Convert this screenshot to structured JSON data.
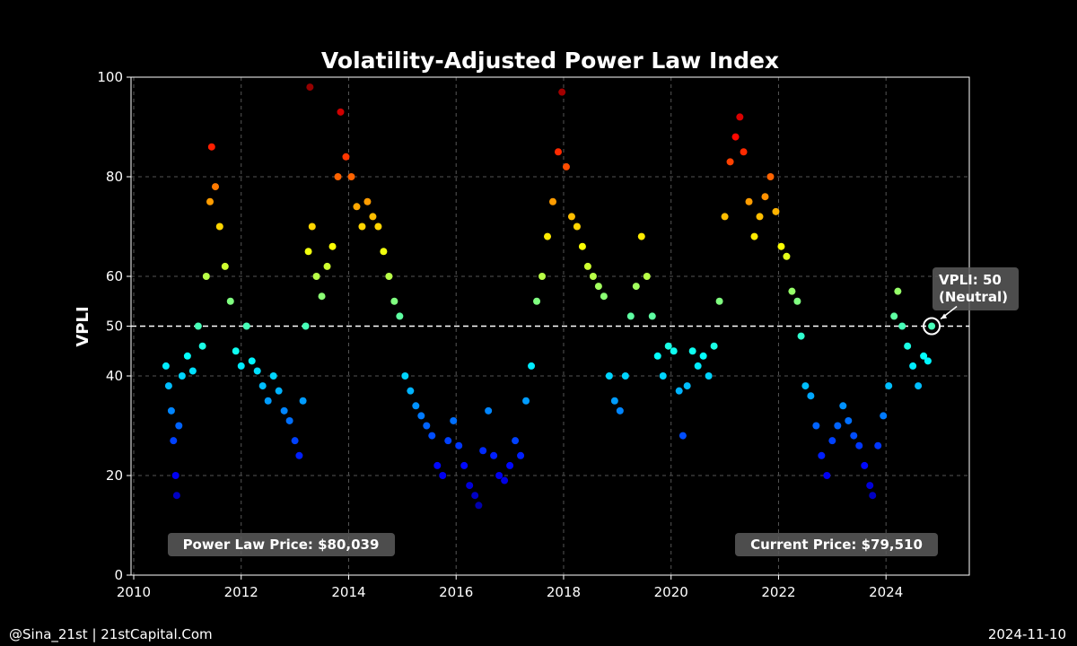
{
  "chart_data": {
    "type": "scatter",
    "title": "Volatility-Adjusted Power Law Index",
    "xlabel": "",
    "ylabel": "VPLI",
    "xlim": [
      2009.95,
      2025.55
    ],
    "ylim": [
      0,
      100
    ],
    "x_ticks": [
      "2010",
      "2012",
      "2014",
      "2016",
      "2018",
      "2020",
      "2022",
      "2024"
    ],
    "y_ticks": [
      "0",
      "20",
      "40",
      "50",
      "60",
      "80",
      "100"
    ],
    "grid": true,
    "reference_line": {
      "y": 50,
      "style": "dashed"
    },
    "colormap": "jet (low = blue, high = red)",
    "series": [
      {
        "points": [
          [
            2010.6,
            42
          ],
          [
            2010.65,
            38
          ],
          [
            2010.7,
            33
          ],
          [
            2010.74,
            27
          ],
          [
            2010.78,
            20
          ],
          [
            2010.8,
            16
          ],
          [
            2010.84,
            30
          ],
          [
            2010.9,
            40
          ],
          [
            2011.0,
            44
          ],
          [
            2011.1,
            41
          ],
          [
            2011.2,
            50
          ],
          [
            2011.28,
            46
          ],
          [
            2011.35,
            60
          ],
          [
            2011.42,
            75
          ],
          [
            2011.45,
            86
          ],
          [
            2011.52,
            78
          ],
          [
            2011.6,
            70
          ],
          [
            2011.7,
            62
          ],
          [
            2011.8,
            55
          ],
          [
            2011.9,
            45
          ],
          [
            2012.0,
            42
          ],
          [
            2012.1,
            50
          ],
          [
            2012.2,
            43
          ],
          [
            2012.3,
            41
          ],
          [
            2012.4,
            38
          ],
          [
            2012.5,
            35
          ],
          [
            2012.6,
            40
          ],
          [
            2012.7,
            37
          ],
          [
            2012.8,
            33
          ],
          [
            2012.9,
            31
          ],
          [
            2013.0,
            27
          ],
          [
            2013.08,
            24
          ],
          [
            2013.15,
            35
          ],
          [
            2013.2,
            50
          ],
          [
            2013.25,
            65
          ],
          [
            2013.28,
            98
          ],
          [
            2013.32,
            70
          ],
          [
            2013.4,
            60
          ],
          [
            2013.5,
            56
          ],
          [
            2013.6,
            62
          ],
          [
            2013.7,
            66
          ],
          [
            2013.8,
            80
          ],
          [
            2013.85,
            93
          ],
          [
            2013.95,
            84
          ],
          [
            2014.05,
            80
          ],
          [
            2014.15,
            74
          ],
          [
            2014.25,
            70
          ],
          [
            2014.35,
            75
          ],
          [
            2014.45,
            72
          ],
          [
            2014.55,
            70
          ],
          [
            2014.65,
            65
          ],
          [
            2014.75,
            60
          ],
          [
            2014.85,
            55
          ],
          [
            2014.95,
            52
          ],
          [
            2015.05,
            40
          ],
          [
            2015.15,
            37
          ],
          [
            2015.25,
            34
          ],
          [
            2015.35,
            32
          ],
          [
            2015.45,
            30
          ],
          [
            2015.55,
            28
          ],
          [
            2015.65,
            22
          ],
          [
            2015.75,
            20
          ],
          [
            2015.85,
            27
          ],
          [
            2015.95,
            31
          ],
          [
            2016.05,
            26
          ],
          [
            2016.15,
            22
          ],
          [
            2016.25,
            18
          ],
          [
            2016.35,
            16
          ],
          [
            2016.42,
            14
          ],
          [
            2016.5,
            25
          ],
          [
            2016.6,
            33
          ],
          [
            2016.7,
            24
          ],
          [
            2016.8,
            20
          ],
          [
            2016.9,
            19
          ],
          [
            2017.0,
            22
          ],
          [
            2017.1,
            27
          ],
          [
            2017.2,
            24
          ],
          [
            2017.3,
            35
          ],
          [
            2017.4,
            42
          ],
          [
            2017.5,
            55
          ],
          [
            2017.6,
            60
          ],
          [
            2017.7,
            68
          ],
          [
            2017.8,
            75
          ],
          [
            2017.9,
            85
          ],
          [
            2017.97,
            97
          ],
          [
            2018.05,
            82
          ],
          [
            2018.15,
            72
          ],
          [
            2018.25,
            70
          ],
          [
            2018.35,
            66
          ],
          [
            2018.45,
            62
          ],
          [
            2018.55,
            60
          ],
          [
            2018.65,
            58
          ],
          [
            2018.75,
            56
          ],
          [
            2018.85,
            40
          ],
          [
            2018.95,
            35
          ],
          [
            2019.05,
            33
          ],
          [
            2019.15,
            40
          ],
          [
            2019.25,
            52
          ],
          [
            2019.35,
            58
          ],
          [
            2019.45,
            68
          ],
          [
            2019.55,
            60
          ],
          [
            2019.65,
            52
          ],
          [
            2019.75,
            44
          ],
          [
            2019.85,
            40
          ],
          [
            2019.95,
            46
          ],
          [
            2020.05,
            45
          ],
          [
            2020.15,
            37
          ],
          [
            2020.22,
            28
          ],
          [
            2020.3,
            38
          ],
          [
            2020.4,
            45
          ],
          [
            2020.5,
            42
          ],
          [
            2020.6,
            44
          ],
          [
            2020.7,
            40
          ],
          [
            2020.8,
            46
          ],
          [
            2020.9,
            55
          ],
          [
            2021.0,
            72
          ],
          [
            2021.1,
            83
          ],
          [
            2021.2,
            88
          ],
          [
            2021.28,
            92
          ],
          [
            2021.35,
            85
          ],
          [
            2021.45,
            75
          ],
          [
            2021.55,
            68
          ],
          [
            2021.65,
            72
          ],
          [
            2021.75,
            76
          ],
          [
            2021.85,
            80
          ],
          [
            2021.95,
            73
          ],
          [
            2022.05,
            66
          ],
          [
            2022.15,
            64
          ],
          [
            2022.25,
            57
          ],
          [
            2022.35,
            55
          ],
          [
            2022.42,
            48
          ],
          [
            2022.5,
            38
          ],
          [
            2022.6,
            36
          ],
          [
            2022.7,
            30
          ],
          [
            2022.8,
            24
          ],
          [
            2022.9,
            20
          ],
          [
            2023.0,
            27
          ],
          [
            2023.1,
            30
          ],
          [
            2023.2,
            34
          ],
          [
            2023.3,
            31
          ],
          [
            2023.4,
            28
          ],
          [
            2023.5,
            26
          ],
          [
            2023.6,
            22
          ],
          [
            2023.7,
            18
          ],
          [
            2023.75,
            16
          ],
          [
            2023.85,
            26
          ],
          [
            2023.95,
            32
          ],
          [
            2024.05,
            38
          ],
          [
            2024.15,
            52
          ],
          [
            2024.22,
            57
          ],
          [
            2024.3,
            50
          ],
          [
            2024.4,
            46
          ],
          [
            2024.5,
            42
          ],
          [
            2024.6,
            38
          ],
          [
            2024.7,
            44
          ],
          [
            2024.78,
            43
          ],
          [
            2024.85,
            50
          ]
        ]
      }
    ],
    "annotations": {
      "current": {
        "x": 2024.85,
        "y": 50,
        "text_line1": "VPLI: 50",
        "text_line2": "(Neutral)"
      },
      "power_law_price": "Power Law Price: $80,039",
      "current_price": "Current Price: $79,510"
    }
  },
  "footer": {
    "left": "@Sina_21st | 21stCapital.Com",
    "right": "2024-11-10"
  }
}
